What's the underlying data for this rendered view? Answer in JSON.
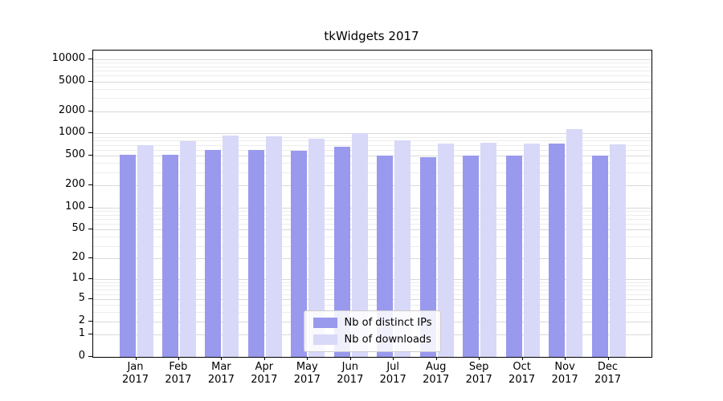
{
  "figure": {
    "background": "#ffffff"
  },
  "chart_data": {
    "type": "bar",
    "title": "tkWidgets 2017",
    "xlabel": "",
    "ylabel": "",
    "scale": "symlog",
    "ylim": [
      0,
      13000
    ],
    "yticks": [
      0,
      1,
      2,
      5,
      10,
      20,
      50,
      100,
      200,
      500,
      1000,
      2000,
      5000,
      10000
    ],
    "grid": true,
    "legend_position": "lower center",
    "categories": [
      "Jan",
      "Feb",
      "Mar",
      "Apr",
      "May",
      "Jun",
      "Jul",
      "Aug",
      "Sep",
      "Oct",
      "Nov",
      "Dec"
    ],
    "year": "2017",
    "series": [
      {
        "name": "Nb of distinct IPs",
        "color": "#9999ee",
        "values": [
          520,
          520,
          600,
          600,
          590,
          670,
          500,
          480,
          500,
          500,
          730,
          500
        ]
      },
      {
        "name": "Nb of downloads",
        "color": "#d8d8f8",
        "values": [
          700,
          790,
          930,
          910,
          860,
          1020,
          800,
          740,
          760,
          740,
          1150,
          720
        ]
      }
    ]
  }
}
